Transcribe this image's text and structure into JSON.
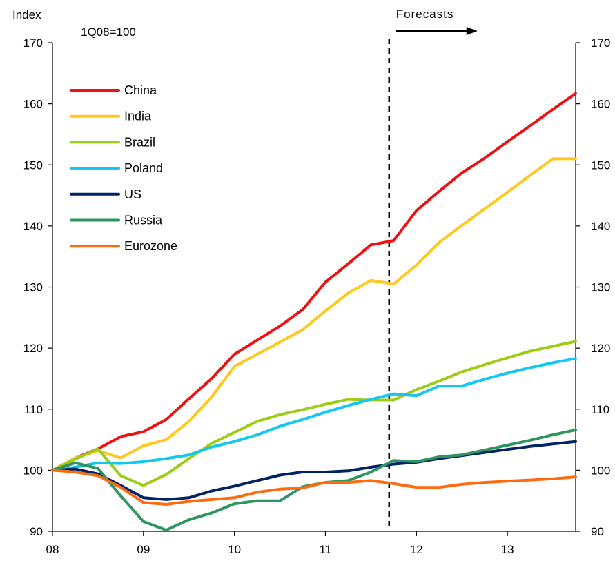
{
  "chart_data": {
    "type": "line",
    "ylabel": "Index",
    "subtitle": "1Q08=100",
    "annotation": "Forecasts",
    "forecast_start_x": 11.7,
    "ylim": [
      90,
      170
    ],
    "y_ticks": [
      90,
      100,
      110,
      120,
      130,
      140,
      150,
      160,
      170
    ],
    "x_ticks": [
      {
        "value": 8,
        "label": "08"
      },
      {
        "value": 9,
        "label": "09"
      },
      {
        "value": 10,
        "label": "10"
      },
      {
        "value": 11,
        "label": "11"
      },
      {
        "value": 12,
        "label": "12"
      },
      {
        "value": 13,
        "label": "13"
      }
    ],
    "xlim": [
      8,
      13.75
    ],
    "grid": false,
    "legend_position": "top-left",
    "x": [
      8,
      8.25,
      8.5,
      8.75,
      9,
      9.25,
      9.5,
      9.75,
      10,
      10.25,
      10.5,
      10.75,
      11,
      11.25,
      11.5,
      11.75,
      12,
      12.25,
      12.5,
      12.75,
      13,
      13.25,
      13.5,
      13.75
    ],
    "series": [
      {
        "name": "China",
        "color": "#ee1111",
        "values": [
          100,
          102,
          103.5,
          105.5,
          106.3,
          108.3,
          111.7,
          115,
          119,
          121.3,
          123.6,
          126.3,
          130.8,
          133.8,
          136.9,
          137.6,
          142.5,
          145.7,
          148.7,
          151.1,
          153.8,
          156.4,
          159.1,
          161.7
        ]
      },
      {
        "name": "India",
        "color": "#ffc81e",
        "values": [
          100,
          102,
          103.2,
          102,
          104,
          105,
          108,
          112,
          117,
          119,
          121,
          123,
          126.1,
          129,
          131.1,
          130.5,
          133.6,
          137.3,
          140.1,
          142.8,
          145.5,
          148.3,
          151,
          151
        ]
      },
      {
        "name": "Brazil",
        "color": "#9ccc14",
        "values": [
          100,
          101.8,
          103.5,
          99.1,
          97.5,
          99.3,
          101.9,
          104.4,
          106.2,
          108,
          109.1,
          109.9,
          110.8,
          111.6,
          111.5,
          111.5,
          113.2,
          114.6,
          116.1,
          117.3,
          118.4,
          119.5,
          120.3,
          121.1
        ]
      },
      {
        "name": "Poland",
        "color": "#11c9f0",
        "values": [
          100,
          100.5,
          101.2,
          101.1,
          101.4,
          101.9,
          102.5,
          103.8,
          104.7,
          105.8,
          107.2,
          108.3,
          109.5,
          110.6,
          111.6,
          112.5,
          112.2,
          113.8,
          113.8,
          114.9,
          115.9,
          116.8,
          117.6,
          118.3
        ]
      },
      {
        "name": "US",
        "color": "#002266",
        "values": [
          100,
          100.2,
          99.4,
          97.5,
          95.5,
          95.2,
          95.5,
          96.6,
          97.4,
          98.3,
          99.2,
          99.7,
          99.7,
          99.9,
          100.5,
          101.0,
          101.3,
          101.9,
          102.4,
          102.9,
          103.4,
          103.9,
          104.3,
          104.7
        ]
      },
      {
        "name": "Russia",
        "color": "#2e9460",
        "values": [
          100,
          101.2,
          100.3,
          95.8,
          91.6,
          90.2,
          91.9,
          93.0,
          94.5,
          95.0,
          95.0,
          97.3,
          98.0,
          98.3,
          99.7,
          101.6,
          101.4,
          102.2,
          102.5,
          103.3,
          104.1,
          104.9,
          105.8,
          106.6
        ]
      },
      {
        "name": "Eurozone",
        "color": "#ff6a10",
        "values": [
          100,
          99.7,
          99.1,
          97.2,
          94.7,
          94.4,
          94.9,
          95.2,
          95.5,
          96.4,
          96.9,
          97.1,
          98.0,
          98.0,
          98.3,
          97.8,
          97.2,
          97.2,
          97.7,
          98.0,
          98.2,
          98.4,
          98.6,
          98.9
        ]
      }
    ]
  }
}
